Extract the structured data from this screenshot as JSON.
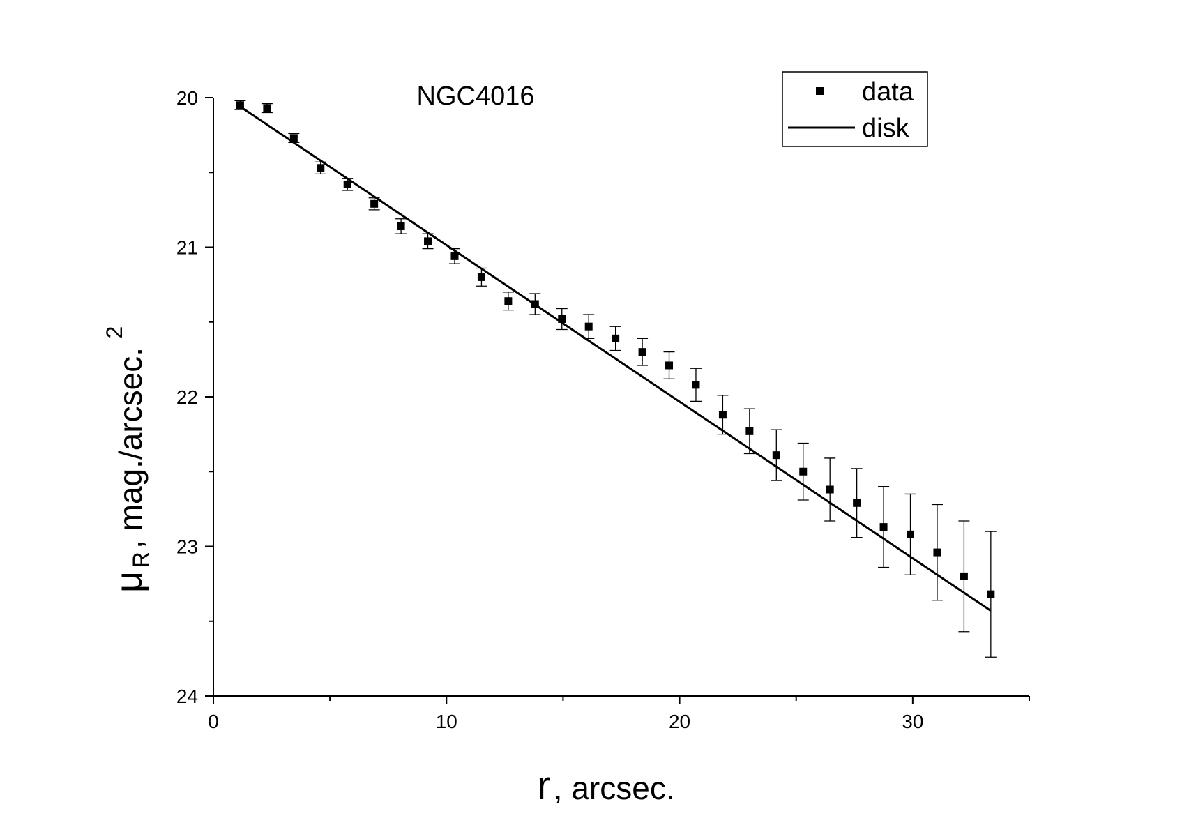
{
  "chart_data": {
    "type": "scatter",
    "title": "NGC4016",
    "xlabel": {
      "symbol": "r",
      "text": "arcsec."
    },
    "ylabel": {
      "symbol": "μ",
      "subscript": "R",
      "text": "mag./arcsec.",
      "superscript": "2"
    },
    "xlim": [
      0,
      35
    ],
    "ylim": [
      20,
      24
    ],
    "y_inverted": true,
    "x_ticks": [
      0,
      10,
      20,
      30
    ],
    "y_ticks": [
      20,
      21,
      22,
      23,
      24
    ],
    "legend_position": "top-right",
    "series": [
      {
        "name": "data",
        "kind": "points-with-errorbars",
        "x": [
          1.15,
          2.3,
          3.45,
          4.6,
          5.75,
          6.9,
          8.05,
          9.2,
          10.35,
          11.5,
          12.65,
          13.8,
          14.95,
          16.1,
          17.25,
          18.4,
          19.55,
          20.7,
          21.85,
          23.0,
          24.15,
          25.3,
          26.45,
          27.6,
          28.75,
          29.9,
          31.05,
          32.2,
          33.35
        ],
        "y": [
          20.05,
          20.07,
          20.27,
          20.47,
          20.58,
          20.71,
          20.86,
          20.96,
          21.06,
          21.2,
          21.36,
          21.38,
          21.48,
          21.53,
          21.61,
          21.7,
          21.79,
          21.92,
          22.12,
          22.23,
          22.39,
          22.5,
          22.62,
          22.71,
          22.87,
          22.92,
          23.04,
          23.2,
          23.32
        ],
        "yerr": [
          0.03,
          0.03,
          0.03,
          0.04,
          0.04,
          0.04,
          0.05,
          0.05,
          0.05,
          0.06,
          0.06,
          0.07,
          0.07,
          0.08,
          0.08,
          0.09,
          0.09,
          0.11,
          0.13,
          0.15,
          0.17,
          0.19,
          0.21,
          0.23,
          0.27,
          0.27,
          0.32,
          0.37,
          0.42
        ]
      },
      {
        "name": "disk",
        "kind": "line",
        "x": [
          1.15,
          33.35
        ],
        "y": [
          20.06,
          23.43
        ]
      }
    ]
  }
}
